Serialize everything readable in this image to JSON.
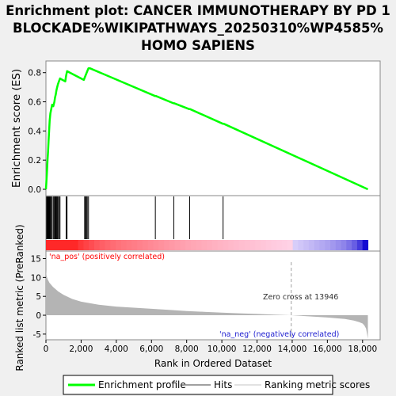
{
  "title_lines": [
    "Enrichment plot: CANCER IMMUNOTHERAPY BY PD 1",
    "BLOCKADE%WIKIPATHWAYS_20250310%WP4585%",
    "HOMO SAPIENS"
  ],
  "colors": {
    "profile": "#00ff00",
    "hits": "#000000",
    "metric_fill": "#b4b4b4",
    "pos_label": "#ff0000",
    "neg_label": "#0000ff",
    "zero_line": "#a0a0a0"
  },
  "chart_data": [
    {
      "type": "line",
      "name": "enrichment-profile-panel",
      "ylabel": "Enrichment score (ES)",
      "ylim": [
        0.0,
        0.88
      ],
      "yticks": [
        0.0,
        0.2,
        0.4,
        0.6,
        0.8
      ],
      "ytick_labels": [
        "0.0",
        "0.2",
        "0.4",
        "0.6",
        "0.8"
      ],
      "grid": false,
      "series": [
        {
          "name": "Enrichment profile",
          "x": [
            0,
            40,
            60,
            90,
            120,
            150,
            180,
            210,
            250,
            300,
            350,
            420,
            480,
            520,
            560,
            600,
            640,
            680,
            740,
            800,
            1100,
            1150,
            1200,
            2150,
            2250,
            2350,
            2420,
            2500,
            6200,
            6250,
            7250,
            7300,
            8150,
            8200,
            10050,
            10100,
            18300
          ],
          "y": [
            0.0,
            0.08,
            0.12,
            0.2,
            0.26,
            0.33,
            0.4,
            0.47,
            0.52,
            0.55,
            0.58,
            0.57,
            0.6,
            0.63,
            0.65,
            0.68,
            0.7,
            0.72,
            0.74,
            0.76,
            0.74,
            0.78,
            0.81,
            0.75,
            0.78,
            0.81,
            0.83,
            0.83,
            0.64,
            0.64,
            0.59,
            0.59,
            0.55,
            0.55,
            0.45,
            0.45,
            0.0
          ]
        }
      ]
    },
    {
      "type": "scatter",
      "name": "hits-panel",
      "series": [
        {
          "name": "Hits",
          "x": [
            40,
            60,
            90,
            120,
            150,
            180,
            210,
            250,
            300,
            350,
            420,
            480,
            520,
            560,
            600,
            640,
            680,
            740,
            800,
            1150,
            1200,
            2200,
            2250,
            2300,
            2350,
            2420,
            6220,
            7270,
            8170,
            10070
          ]
        }
      ]
    },
    {
      "type": "area",
      "name": "ranked-metric-panel",
      "xlabel": "Rank in Ordered Dataset",
      "ylabel": "Ranked list metric (PreRanked)",
      "xlim": [
        0,
        19000
      ],
      "ylim": [
        -6.5,
        17
      ],
      "xticks": [
        0,
        2000,
        4000,
        6000,
        8000,
        10000,
        12000,
        14000,
        16000,
        18000
      ],
      "xtick_labels": [
        "0",
        "2,000",
        "4,000",
        "6,000",
        "8,000",
        "10,000",
        "12,000",
        "14,000",
        "16,000",
        "18,000"
      ],
      "yticks": [
        -5,
        0,
        5,
        10,
        15
      ],
      "ytick_labels": [
        "-5",
        "0",
        "5",
        "10",
        "15"
      ],
      "series": [
        {
          "name": "Ranking metric scores",
          "x": [
            0,
            30,
            100,
            200,
            400,
            700,
            1000,
            1500,
            2000,
            3000,
            4000,
            5000,
            6000,
            7000,
            8000,
            9000,
            10000,
            11000,
            12000,
            13000,
            13946,
            15000,
            16000,
            17000,
            17500,
            17800,
            18000,
            18100,
            18200,
            18300
          ],
          "y": [
            12,
            10.5,
            9.5,
            8.6,
            7.5,
            6.3,
            5.4,
            4.3,
            3.6,
            2.8,
            2.3,
            2.0,
            1.7,
            1.4,
            1.1,
            0.9,
            0.7,
            0.5,
            0.35,
            0.15,
            0.0,
            -0.3,
            -0.6,
            -1.0,
            -1.4,
            -1.8,
            -2.2,
            -2.7,
            -3.5,
            -6.2
          ]
        }
      ],
      "annotations": {
        "pos": "'na_pos' (positively correlated)",
        "neg": "'na_neg' (negatively correlated)",
        "zero": "Zero cross at 13946"
      },
      "zero_cross": 13946
    }
  ],
  "legend": {
    "items": [
      {
        "label": "Enrichment profile",
        "color": "#00ff00"
      },
      {
        "label": "Hits",
        "color": "#808080"
      },
      {
        "label": "Ranking metric scores",
        "color": "#d8d8d8"
      }
    ]
  }
}
